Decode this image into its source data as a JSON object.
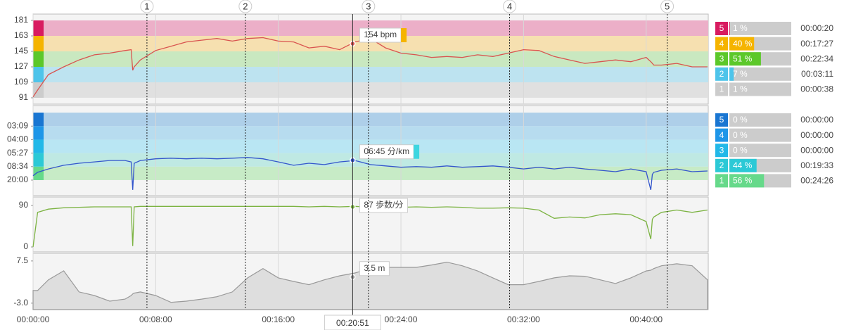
{
  "cursor": {
    "x": 20.85,
    "label": "00:20:51"
  },
  "laps": {
    "numbers": [
      1,
      2,
      3,
      4,
      5
    ],
    "x": [
      7.43,
      13.85,
      21.88,
      31.09,
      41.37
    ]
  },
  "chart_data": [
    {
      "type": "line",
      "xlim": [
        0,
        44.05
      ],
      "ylim": [
        83.6,
        188.4
      ],
      "yticks": [
        91,
        109,
        127,
        145,
        163,
        181
      ],
      "x": [
        0,
        0.3,
        1,
        2,
        3,
        4,
        5,
        6,
        6.4,
        6.5,
        6.6,
        7,
        8,
        9,
        10,
        11,
        12,
        13,
        14,
        15,
        16,
        17,
        18,
        19,
        20,
        21,
        22,
        23,
        24,
        25,
        26,
        27,
        28,
        29,
        30,
        31,
        32,
        33,
        34,
        35,
        36,
        37,
        38,
        39,
        40,
        40.3,
        40.4,
        40.5,
        41,
        42,
        43,
        44
      ],
      "series": [
        {
          "color": "#d9534f",
          "values": [
            92,
            100,
            118,
            127,
            135,
            141,
            143,
            146,
            147,
            123,
            127,
            135,
            146,
            151,
            156,
            158,
            160,
            157,
            160,
            161,
            157,
            156,
            149,
            151,
            147,
            156,
            160,
            149,
            143,
            141,
            138,
            139,
            138,
            141,
            139,
            143,
            147,
            146,
            139,
            135,
            131,
            133,
            135,
            133,
            138,
            133,
            131,
            129,
            129,
            131,
            127,
            127
          ]
        }
      ],
      "cursor_value": {
        "value": 154,
        "label": "154 bpm",
        "color": "#f5b400"
      },
      "zones": {
        "bounds": [
          91,
          109,
          127,
          145,
          163,
          181
        ],
        "numbers": [
          5,
          4,
          3,
          2,
          1
        ],
        "percents": [
          1,
          40,
          51,
          7,
          1
        ],
        "percent_labels": [
          "1 %",
          "40 %",
          "51 %",
          "7 %",
          "1 %"
        ],
        "times": [
          "00:00:20",
          "00:17:27",
          "00:22:34",
          "00:03:11",
          "00:00:38"
        ],
        "colors": [
          "#d81b60",
          "#f5b400",
          "#5cc82a",
          "#4ec4ea",
          "#cccccc"
        ],
        "band_colors": [
          "#ecafc8",
          "#f6e0b0",
          "#c9e8c0",
          "#bde3f0",
          "#e0e0e0"
        ]
      }
    },
    {
      "type": "line",
      "xlim": [
        0,
        44.05
      ],
      "ylim": [
        -1.6,
        25.1
      ],
      "yticks": [
        {
          "value": 19,
          "label": "03:09"
        },
        {
          "value": 15,
          "label": "04:00"
        },
        {
          "value": 11,
          "label": "05:27"
        },
        {
          "value": 7,
          "label": "08:34"
        },
        {
          "value": 3,
          "label": "20:00"
        }
      ],
      "x": [
        0,
        0.3,
        1,
        2,
        3,
        4,
        5,
        6,
        6.4,
        6.5,
        6.6,
        7,
        8,
        9,
        10,
        11,
        12,
        13,
        14,
        15,
        16,
        17,
        18,
        19,
        20,
        21,
        22,
        23,
        24,
        25,
        26,
        27,
        28,
        29,
        30,
        31,
        32,
        33,
        34,
        35,
        36,
        37,
        38,
        39,
        40,
        40.3,
        40.4,
        40.5,
        41,
        42,
        43,
        44
      ],
      "series": [
        {
          "color": "#3355cc",
          "values": [
            4.3,
            5.3,
            6.3,
            7.4,
            8,
            8.4,
            8.8,
            8.8,
            8.4,
            0.1,
            8,
            8.8,
            9.3,
            9.5,
            9.3,
            9.5,
            9.3,
            9.5,
            9.7,
            9.3,
            8.4,
            7.4,
            8,
            7.6,
            8.4,
            8.8,
            7.6,
            7.2,
            6.8,
            7,
            6.8,
            7.2,
            6.8,
            7,
            7.2,
            6.8,
            6.3,
            6.8,
            6.3,
            6.8,
            6.3,
            5.9,
            5.5,
            6.3,
            5.5,
            0.1,
            4.7,
            5.3,
            5.9,
            6.3,
            5.5,
            5.7
          ]
        }
      ],
      "cursor_value": {
        "value": 8.89,
        "label": "06:45 分/km",
        "color": "#3dd6e0"
      },
      "zones": {
        "bounds": [
          3,
          7,
          11,
          15,
          19,
          23
        ],
        "numbers": [
          5,
          4,
          3,
          2,
          1
        ],
        "percents": [
          0,
          0,
          0,
          44,
          56
        ],
        "percent_labels": [
          "0 %",
          "0 %",
          "0 %",
          "44 %",
          "56 %"
        ],
        "times": [
          "00:00:00",
          "00:00:00",
          "00:00:00",
          "00:19:33",
          "00:24:26"
        ],
        "colors": [
          "#1976d2",
          "#1e96e8",
          "#22b8e8",
          "#2cc9d6",
          "#66d98a"
        ],
        "band_colors": [
          "#aecfe9",
          "#b7dcef",
          "#b9e6f3",
          "#bfe9e3",
          "#c7ebc6"
        ]
      }
    },
    {
      "type": "line",
      "xlim": [
        0,
        44.05
      ],
      "ylim": [
        -10.7,
        108.3
      ],
      "yticks": [
        0,
        90
      ],
      "x": [
        0,
        0.3,
        1,
        2,
        3,
        4,
        5,
        6,
        6.4,
        6.5,
        6.6,
        7,
        8,
        9,
        10,
        11,
        12,
        13,
        14,
        15,
        16,
        17,
        18,
        19,
        20,
        21,
        22,
        23,
        24,
        25,
        26,
        27,
        28,
        29,
        30,
        31,
        32,
        33,
        34,
        35,
        36,
        37,
        38,
        39,
        40,
        40.3,
        40.4,
        40.5,
        41,
        42,
        43,
        44
      ],
      "series": [
        {
          "color": "#7cb342",
          "values": [
            0,
            75,
            82,
            85,
            86,
            87,
            87,
            87,
            87,
            2,
            87,
            88,
            88,
            88,
            88,
            88,
            88,
            88,
            88,
            88,
            88,
            88,
            87,
            88,
            87,
            88,
            86,
            87,
            86,
            87,
            86,
            87,
            86,
            84,
            84,
            85,
            84,
            80,
            62,
            65,
            63,
            70,
            72,
            70,
            55,
            17,
            60,
            65,
            75,
            80,
            75,
            80
          ]
        }
      ],
      "cursor_value": {
        "value": 87,
        "label": "87 歩数/分"
      }
    },
    {
      "type": "area",
      "xlim": [
        0,
        44.05
      ],
      "ylim": [
        -4.6,
        9.4
      ],
      "yticks": [
        7.5,
        {
          "value": -3,
          "label": "-3.0"
        }
      ],
      "xticks": [
        {
          "value": 0,
          "label": "00:00:00"
        },
        {
          "value": 8,
          "label": "00:08:00"
        },
        {
          "value": 16,
          "label": "00:16:00"
        },
        {
          "value": 24,
          "label": "00:24:00"
        },
        {
          "value": 32,
          "label": "00:32:00"
        },
        {
          "value": 40,
          "label": "00:40:00"
        }
      ],
      "x": [
        0,
        0.3,
        1,
        2,
        3,
        4,
        5,
        6,
        6.4,
        6.5,
        6.6,
        7,
        8,
        9,
        10,
        11,
        12,
        13,
        14,
        15,
        16,
        17,
        18,
        19,
        20,
        21,
        22,
        23,
        24,
        25,
        26,
        27,
        28,
        29,
        30,
        31,
        32,
        33,
        34,
        35,
        36,
        37,
        38,
        39,
        40,
        40.3,
        40.4,
        40.5,
        41,
        42,
        43,
        44
      ],
      "series": [
        {
          "color": "#999999",
          "values": [
            0.15,
            0.15,
            2.8,
            5.05,
            -0.2,
            -1.1,
            -2.5,
            -2,
            -1.1,
            -0.7,
            -0.5,
            -0.2,
            -1.1,
            -2.8,
            -2.5,
            -2,
            -1.4,
            -0.2,
            3.3,
            5.6,
            3.3,
            2.4,
            1.6,
            2.8,
            3.8,
            4.5,
            5.6,
            5.9,
            5.9,
            5.9,
            6.5,
            7.2,
            6.3,
            5,
            3.3,
            1.6,
            1.6,
            2.4,
            3.3,
            3.8,
            3.7,
            2.8,
            1.9,
            3.3,
            5,
            5.2,
            5.4,
            5.6,
            6.3,
            6.8,
            6.3,
            2.8
          ]
        }
      ],
      "cursor_value": {
        "value": 3.5,
        "label": "3.5 m"
      }
    }
  ]
}
